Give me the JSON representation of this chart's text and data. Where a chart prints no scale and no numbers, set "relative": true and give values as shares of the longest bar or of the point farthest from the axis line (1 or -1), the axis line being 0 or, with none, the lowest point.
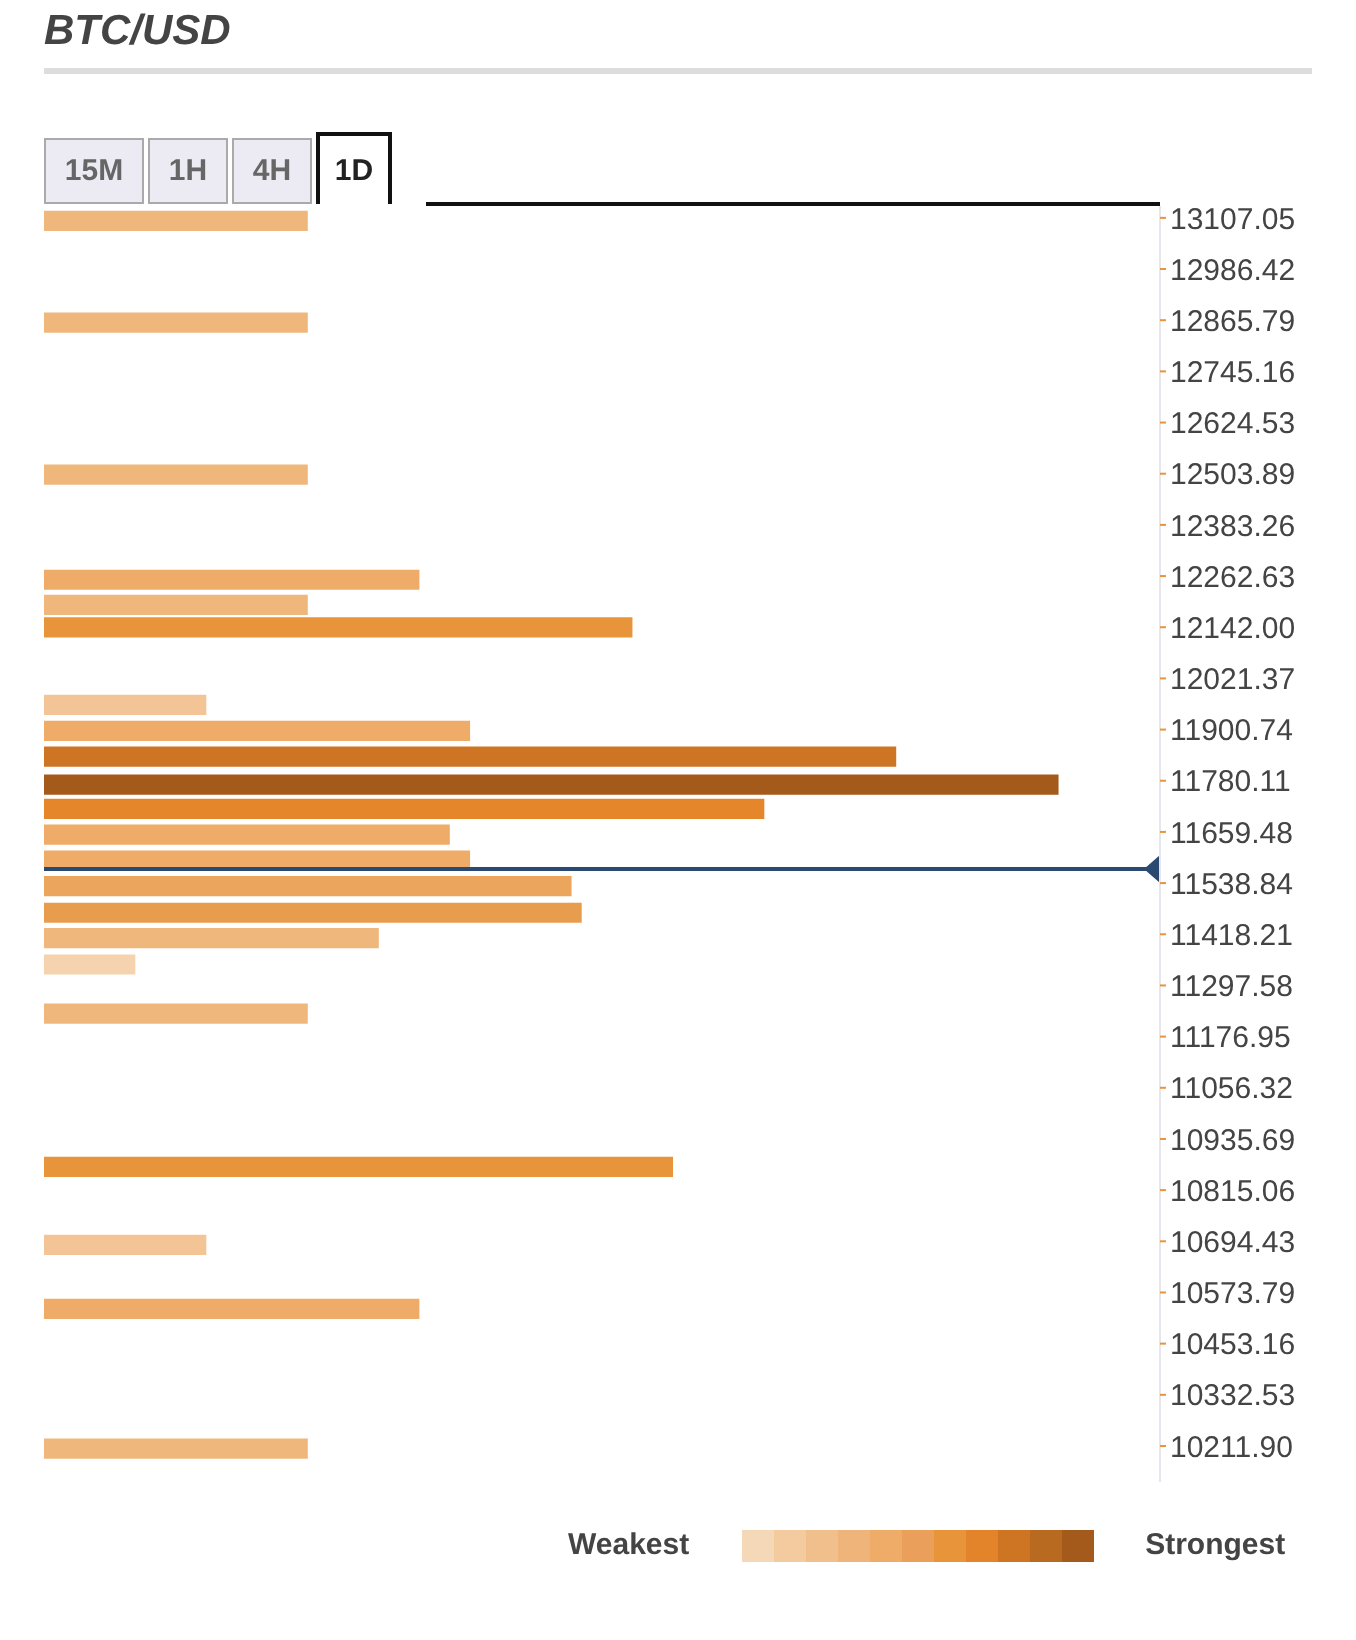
{
  "chart_data": {
    "type": "bar",
    "title": "BTC/USD",
    "orientation": "horizontal",
    "relative": true,
    "x": [
      13102,
      12862,
      12504,
      12256,
      12197,
      12144,
      11961,
      11900,
      11839,
      11773,
      11716,
      11655,
      11594,
      11534,
      11471,
      11411,
      11349,
      11233,
      10872,
      10688,
      10537,
      10208
    ],
    "values": [
      0.26,
      0.26,
      0.26,
      0.37,
      0.26,
      0.58,
      0.16,
      0.42,
      0.84,
      1.0,
      0.71,
      0.4,
      0.42,
      0.52,
      0.53,
      0.33,
      0.09,
      0.26,
      0.62,
      0.16,
      0.37,
      0.26
    ],
    "colors": [
      "#f0b77c",
      "#f0b77c",
      "#f0b77c",
      "#eeac68",
      "#f0b77c",
      "#e8943a",
      "#f3c596",
      "#eeac68",
      "#cd7522",
      "#a45a1a",
      "#e6862a",
      "#eeac68",
      "#eeac68",
      "#eba55c",
      "#e89d4e",
      "#f0b77c",
      "#f5d3ae",
      "#f0b77c",
      "#e8943a",
      "#f3c596",
      "#eeac68",
      "#f0b77c"
    ],
    "ylim": [
      10127,
      13135
    ],
    "yticks": [
      13107.05,
      12986.42,
      12865.79,
      12745.16,
      12624.53,
      12503.89,
      12383.26,
      12262.63,
      {
        "value": 12142,
        "label": "12142.00"
      },
      12021.37,
      11900.74,
      11780.11,
      11659.48,
      11538.84,
      11418.21,
      11297.58,
      11176.95,
      11056.32,
      10935.69,
      10815.06,
      10694.43,
      10573.79,
      10453.16,
      10332.53,
      {
        "value": 10211.9,
        "label": "10211.90"
      }
    ],
    "ref_lines": [
      {
        "axis": "y",
        "value": 11572,
        "color": "#2b4a72"
      }
    ],
    "annotations": [
      "15M",
      "1H",
      "4H",
      "1D",
      "Weakest",
      "Strongest"
    ]
  }
}
